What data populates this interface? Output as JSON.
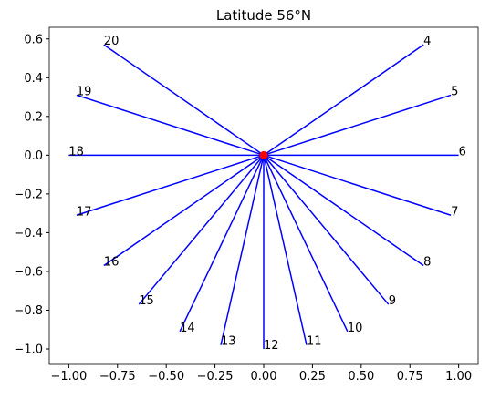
{
  "chart_data": {
    "type": "hourlines",
    "title": "Latitude 56°N",
    "labels": [
      "4",
      "5",
      "6",
      "7",
      "8",
      "9",
      "10",
      "11",
      "12",
      "13",
      "14",
      "15",
      "16",
      "17",
      "18",
      "19",
      "20"
    ],
    "x": [
      0.82,
      0.96,
      1.0,
      0.96,
      0.82,
      0.64,
      0.43,
      0.22,
      0.0,
      -0.22,
      -0.43,
      -0.64,
      -0.82,
      -0.96,
      -1.0,
      -0.96,
      -0.82
    ],
    "y": [
      0.57,
      0.31,
      0.0,
      -0.31,
      -0.57,
      -0.77,
      -0.91,
      -0.98,
      -1.0,
      -0.98,
      -0.91,
      -0.77,
      -0.57,
      -0.31,
      0.0,
      0.31,
      0.57
    ],
    "color": "#0000ff",
    "center": {
      "x": 0,
      "y": 0,
      "color": "#ff0000"
    },
    "xlim": [
      -1.1,
      1.1
    ],
    "ylim": [
      -1.08,
      0.66
    ],
    "xticks": [
      {
        "value": -1,
        "label": "−1.00"
      },
      {
        "value": -0.75,
        "label": "−0.75"
      },
      {
        "value": -0.5,
        "label": "−0.50"
      },
      {
        "value": -0.25,
        "label": "−0.25"
      },
      {
        "value": 0,
        "label": "0.00"
      },
      {
        "value": 0.25,
        "label": "0.25"
      },
      {
        "value": 0.5,
        "label": "0.50"
      },
      {
        "value": 0.75,
        "label": "0.75"
      },
      {
        "value": 1,
        "label": "1.00"
      }
    ],
    "yticks": [
      {
        "value": -1,
        "label": "−1.0"
      },
      {
        "value": -0.8,
        "label": "−0.8"
      },
      {
        "value": -0.6,
        "label": "−0.6"
      },
      {
        "value": -0.4,
        "label": "−0.4"
      },
      {
        "value": -0.2,
        "label": "−0.2"
      },
      {
        "value": 0,
        "label": "0.0"
      },
      0.2,
      0.4,
      0.6
    ]
  }
}
